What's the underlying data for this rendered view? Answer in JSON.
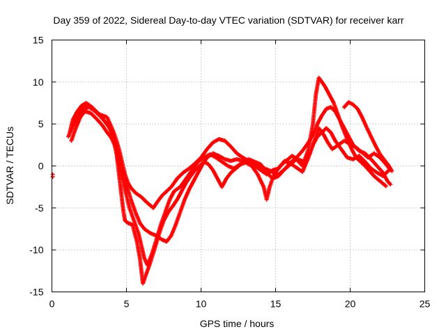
{
  "chart_data": {
    "type": "scatter",
    "title": "Day 359 of 2022, Sidereal Day-to-day VTEC variation (SDTVAR) for receiver karr",
    "xlabel": "GPS time / hours",
    "ylabel": "SDTVAR / TECUs",
    "xlim": [
      0,
      25
    ],
    "ylim": [
      -15,
      15
    ],
    "xticks": [
      "0",
      "5",
      "10",
      "15",
      "20",
      "25"
    ],
    "yticks": [
      "15",
      "10",
      "5",
      "0",
      "-5",
      "-10",
      "-15"
    ],
    "grid": true,
    "marker": "plus",
    "color": "#ff0000",
    "series": [
      {
        "values": [
          [
            0.05,
            -1.0
          ],
          [
            0.05,
            -1.3
          ]
        ]
      },
      {
        "values": [
          [
            1.2,
            4.0
          ],
          [
            1.4,
            5.5
          ],
          [
            1.7,
            6.5
          ],
          [
            2.0,
            7.2
          ],
          [
            2.3,
            7.5
          ],
          [
            2.7,
            7.0
          ],
          [
            3.0,
            6.3
          ],
          [
            3.4,
            6.0
          ],
          [
            3.7,
            5.8
          ],
          [
            3.9,
            5.0
          ],
          [
            4.1,
            4.2
          ],
          [
            4.3,
            3.2
          ],
          [
            4.5,
            2.0
          ],
          [
            4.7,
            0.5
          ],
          [
            4.9,
            -1.0
          ],
          [
            5.1,
            -2.0
          ],
          [
            5.3,
            -2.6
          ],
          [
            5.6,
            -3.2
          ],
          [
            6.0,
            -3.7
          ],
          [
            6.4,
            -4.4
          ],
          [
            6.8,
            -5.0
          ],
          [
            7.1,
            -4.2
          ],
          [
            7.4,
            -3.5
          ],
          [
            7.7,
            -3.0
          ],
          [
            8.0,
            -2.5
          ],
          [
            8.4,
            -1.5
          ],
          [
            8.8,
            -0.8
          ],
          [
            9.2,
            -0.3
          ],
          [
            9.6,
            0.3
          ],
          [
            10.0,
            1.0
          ],
          [
            10.4,
            2.0
          ],
          [
            10.8,
            2.8
          ],
          [
            11.2,
            3.2
          ],
          [
            11.6,
            3.0
          ],
          [
            12.0,
            2.3
          ],
          [
            12.4,
            1.5
          ],
          [
            12.8,
            1.0
          ],
          [
            13.2,
            0.6
          ],
          [
            13.6,
            0.2
          ],
          [
            14.0,
            -0.1
          ],
          [
            14.4,
            -0.4
          ],
          [
            14.8,
            -0.7
          ],
          [
            15.2,
            -1.0
          ],
          [
            15.6,
            -0.4
          ],
          [
            16.0,
            0.4
          ],
          [
            16.4,
            1.0
          ],
          [
            16.8,
            1.8
          ],
          [
            17.2,
            2.8
          ],
          [
            17.6,
            4.0
          ],
          [
            17.8,
            5.0
          ],
          [
            18.1,
            6.0
          ],
          [
            18.4,
            6.8
          ],
          [
            18.7,
            7.0
          ],
          [
            19.0,
            6.5
          ],
          [
            19.3,
            5.5
          ],
          [
            19.6,
            4.5
          ],
          [
            19.9,
            3.5
          ],
          [
            20.2,
            2.5
          ],
          [
            20.6,
            1.8
          ],
          [
            21.0,
            1.5
          ],
          [
            21.4,
            0.8
          ],
          [
            21.8,
            0.0
          ],
          [
            22.2,
            -0.8
          ],
          [
            22.5,
            -1.8
          ],
          [
            22.7,
            -2.2
          ]
        ]
      },
      {
        "values": [
          [
            1.3,
            3.0
          ],
          [
            1.6,
            4.5
          ],
          [
            1.9,
            5.8
          ],
          [
            2.2,
            6.5
          ],
          [
            2.6,
            6.3
          ],
          [
            3.0,
            5.6
          ],
          [
            3.4,
            4.8
          ],
          [
            3.7,
            4.0
          ],
          [
            4.0,
            3.3
          ],
          [
            4.2,
            2.5
          ],
          [
            4.4,
            1.0
          ],
          [
            4.6,
            -0.5
          ],
          [
            4.8,
            -2.0
          ],
          [
            5.0,
            -3.5
          ],
          [
            5.2,
            -5.0
          ],
          [
            5.5,
            -6.5
          ],
          [
            5.8,
            -8.0
          ],
          [
            6.0,
            -9.5
          ],
          [
            6.2,
            -11.0
          ],
          [
            6.4,
            -11.8
          ],
          [
            6.7,
            -10.5
          ],
          [
            7.0,
            -8.8
          ],
          [
            7.3,
            -7.0
          ],
          [
            7.6,
            -5.5
          ],
          [
            7.9,
            -4.0
          ],
          [
            8.2,
            -3.0
          ],
          [
            8.6,
            -2.5
          ],
          [
            9.0,
            -1.5
          ],
          [
            9.4,
            -0.5
          ],
          [
            9.8,
            0.5
          ],
          [
            10.2,
            1.0
          ],
          [
            10.6,
            1.4
          ],
          [
            11.0,
            1.0
          ],
          [
            11.4,
            0.5
          ],
          [
            11.8,
            0.0
          ],
          [
            12.2,
            -0.3
          ],
          [
            12.6,
            0.2
          ],
          [
            13.0,
            0.4
          ],
          [
            13.4,
            0.0
          ],
          [
            13.8,
            -1.0
          ],
          [
            14.2,
            -2.5
          ],
          [
            14.4,
            -4.0
          ],
          [
            14.6,
            -2.5
          ],
          [
            14.9,
            -1.0
          ],
          [
            15.3,
            0.0
          ],
          [
            15.7,
            0.6
          ],
          [
            16.1,
            1.2
          ],
          [
            16.5,
            0.8
          ],
          [
            16.9,
            0.5
          ],
          [
            17.3,
            1.5
          ],
          [
            17.6,
            3.0
          ],
          [
            17.9,
            4.5
          ],
          [
            18.2,
            3.8
          ],
          [
            18.5,
            2.8
          ],
          [
            18.8,
            2.0
          ],
          [
            19.2,
            2.5
          ],
          [
            19.6,
            3.0
          ],
          [
            20.0,
            2.6
          ],
          [
            20.4,
            2.2
          ],
          [
            20.8,
            1.6
          ],
          [
            21.2,
            1.0
          ],
          [
            21.6,
            1.5
          ],
          [
            22.0,
            1.0
          ],
          [
            22.4,
            0.2
          ],
          [
            22.7,
            -0.5
          ]
        ]
      },
      {
        "values": [
          [
            1.1,
            3.5
          ],
          [
            1.4,
            4.8
          ],
          [
            1.8,
            5.6
          ],
          [
            2.1,
            6.8
          ],
          [
            2.5,
            7.0
          ],
          [
            2.9,
            6.5
          ],
          [
            3.3,
            5.8
          ],
          [
            3.6,
            5.2
          ],
          [
            3.9,
            4.5
          ],
          [
            4.1,
            3.6
          ],
          [
            4.3,
            2.5
          ],
          [
            4.5,
            1.0
          ],
          [
            4.7,
            -0.3
          ],
          [
            4.9,
            -1.5
          ],
          [
            5.1,
            -2.8
          ],
          [
            5.3,
            -4.0
          ],
          [
            5.6,
            -5.5
          ],
          [
            5.9,
            -6.8
          ],
          [
            6.2,
            -7.5
          ],
          [
            6.6,
            -8.0
          ],
          [
            7.0,
            -8.3
          ],
          [
            7.4,
            -8.8
          ],
          [
            7.7,
            -9.0
          ],
          [
            8.0,
            -8.3
          ],
          [
            8.3,
            -7.0
          ],
          [
            8.6,
            -5.5
          ],
          [
            8.9,
            -4.0
          ],
          [
            9.2,
            -2.8
          ],
          [
            9.5,
            -1.8
          ],
          [
            9.8,
            -0.8
          ],
          [
            10.1,
            0.2
          ],
          [
            10.4,
            1.0
          ],
          [
            10.8,
            1.5
          ],
          [
            11.2,
            1.2
          ],
          [
            11.6,
            0.8
          ],
          [
            12.0,
            0.6
          ],
          [
            12.4,
            0.8
          ],
          [
            12.8,
            0.6
          ],
          [
            13.2,
            0.4
          ],
          [
            13.6,
            0.0
          ],
          [
            14.0,
            -0.5
          ],
          [
            14.4,
            -1.0
          ],
          [
            14.8,
            -0.5
          ],
          [
            15.2,
            -0.3
          ],
          [
            15.6,
            0.6
          ],
          [
            16.0,
            0.3
          ],
          [
            16.4,
            -0.2
          ],
          [
            16.8,
            -0.7
          ],
          [
            17.2,
            1.0
          ],
          [
            17.5,
            2.5
          ],
          [
            17.8,
            3.5
          ],
          [
            18.1,
            4.0
          ],
          [
            18.4,
            4.5
          ],
          [
            18.7,
            4.0
          ],
          [
            19.0,
            3.0
          ],
          [
            19.4,
            2.0
          ],
          [
            19.8,
            1.0
          ],
          [
            20.2,
            0.8
          ],
          [
            20.6,
            1.2
          ],
          [
            21.0,
            0.5
          ],
          [
            21.4,
            -0.3
          ],
          [
            21.8,
            -0.8
          ],
          [
            22.2,
            -1.2
          ],
          [
            22.6,
            -0.5
          ]
        ]
      },
      {
        "values": [
          [
            1.5,
            5.0
          ],
          [
            1.8,
            6.2
          ],
          [
            2.1,
            6.9
          ],
          [
            2.4,
            7.3
          ],
          [
            2.8,
            6.8
          ],
          [
            3.2,
            6.1
          ],
          [
            3.5,
            5.4
          ],
          [
            3.8,
            4.7
          ],
          [
            4.0,
            4.0
          ],
          [
            4.2,
            3.0
          ],
          [
            4.3,
            2.0
          ],
          [
            4.4,
            0.5
          ],
          [
            4.5,
            -1.0
          ],
          [
            4.6,
            -2.5
          ],
          [
            4.7,
            -4.0
          ],
          [
            4.8,
            -5.5
          ],
          [
            4.9,
            -6.5
          ],
          [
            5.1,
            -6.8
          ],
          [
            5.4,
            -7.0
          ],
          [
            5.7,
            -9.0
          ],
          [
            5.9,
            -11.0
          ],
          [
            6.0,
            -12.5
          ],
          [
            6.1,
            -14.0
          ],
          [
            6.3,
            -13.0
          ],
          [
            6.6,
            -11.5
          ],
          [
            6.9,
            -9.8
          ],
          [
            7.2,
            -8.0
          ],
          [
            7.5,
            -6.5
          ],
          [
            7.8,
            -5.5
          ],
          [
            8.1,
            -4.8
          ],
          [
            8.4,
            -4.0
          ],
          [
            8.7,
            -3.0
          ],
          [
            9.0,
            -2.0
          ],
          [
            9.3,
            -1.2
          ],
          [
            9.6,
            -0.5
          ],
          [
            9.9,
            0.0
          ],
          [
            10.2,
            0.5
          ],
          [
            10.5,
            0.2
          ],
          [
            10.8,
            -0.5
          ],
          [
            11.1,
            -1.5
          ],
          [
            11.4,
            -2.5
          ],
          [
            11.7,
            -1.5
          ],
          [
            12.0,
            -0.8
          ],
          [
            12.4,
            -0.2
          ],
          [
            12.8,
            0.4
          ],
          [
            13.2,
            0.8
          ],
          [
            13.6,
            0.5
          ],
          [
            14.0,
            0.2
          ],
          [
            14.4,
            -0.8
          ],
          [
            14.8,
            -1.5
          ],
          [
            15.2,
            -1.2
          ],
          [
            15.6,
            -0.4
          ],
          [
            16.0,
            0.2
          ],
          [
            16.4,
            0.8
          ],
          [
            16.8,
            0.0
          ],
          [
            17.2,
            2.0
          ],
          [
            17.5,
            5.0
          ],
          [
            17.7,
            8.5
          ],
          [
            17.9,
            10.5
          ],
          [
            18.1,
            10.0
          ],
          [
            18.3,
            9.5
          ],
          [
            18.6,
            8.5
          ],
          [
            18.9,
            7.5
          ],
          [
            19.2,
            6.0
          ],
          [
            19.5,
            4.5
          ],
          [
            19.8,
            3.2
          ],
          [
            20.1,
            2.0
          ],
          [
            20.4,
            1.0
          ],
          [
            20.7,
            0.5
          ],
          [
            21.0,
            0.0
          ],
          [
            21.3,
            -0.6
          ],
          [
            21.6,
            -1.2
          ],
          [
            22.0,
            -1.8
          ],
          [
            22.4,
            -2.4
          ]
        ]
      },
      {
        "values": [
          [
            19.6,
            7.0
          ],
          [
            19.9,
            7.6
          ],
          [
            20.2,
            7.3
          ],
          [
            20.5,
            6.8
          ],
          [
            20.8,
            5.8
          ],
          [
            21.1,
            4.6
          ],
          [
            21.4,
            3.5
          ],
          [
            21.7,
            2.4
          ],
          [
            22.0,
            1.4
          ],
          [
            22.3,
            0.7
          ],
          [
            22.6,
            0.0
          ],
          [
            22.8,
            -0.6
          ]
        ]
      }
    ]
  }
}
